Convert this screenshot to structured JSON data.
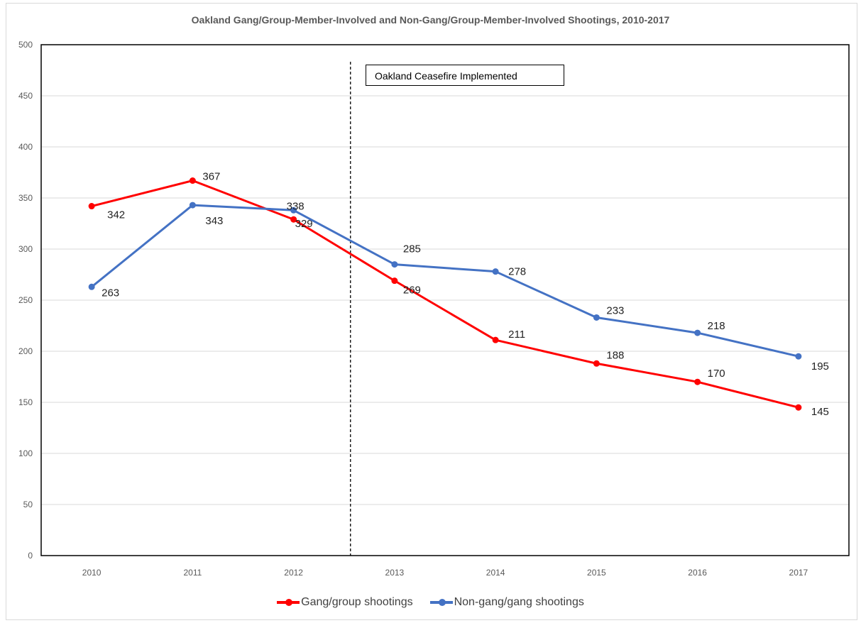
{
  "chart_data": {
    "type": "line",
    "title": "Oakland Gang/Group-Member-Involved and Non-Gang/Group-Member-Involved Shootings, 2010-2017",
    "categories": [
      "2010",
      "2011",
      "2012",
      "2013",
      "2014",
      "2015",
      "2016",
      "2017"
    ],
    "ylim": [
      0,
      500
    ],
    "yticks": [
      0,
      50,
      100,
      150,
      200,
      250,
      300,
      350,
      400,
      450,
      500
    ],
    "grid": true,
    "legend": "bottom",
    "series": [
      {
        "name": "Gang/group shootings",
        "color": "#ff0000",
        "values": [
          342,
          367,
          329,
          269,
          211,
          188,
          170,
          145
        ]
      },
      {
        "name": "Non-gang/gang shootings",
        "color": "#4472c4",
        "values": [
          263,
          343,
          338,
          285,
          278,
          233,
          218,
          195
        ]
      }
    ],
    "annotation": {
      "text": "Oakland Ceasefire Implemented",
      "between": [
        "2012",
        "2013"
      ],
      "line_style": "dashed"
    }
  }
}
